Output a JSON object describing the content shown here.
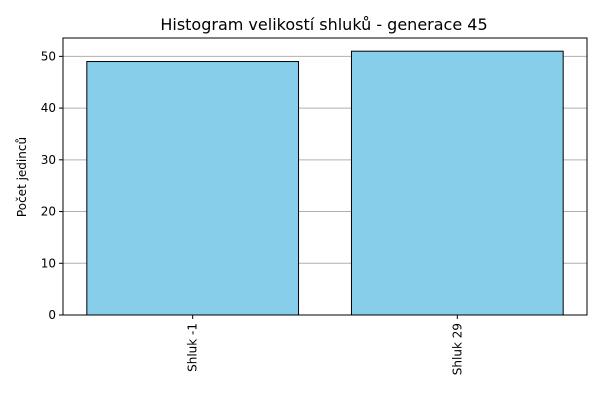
{
  "chart_data": {
    "type": "bar",
    "title": "Histogram velikostí shluků - generace 45",
    "xlabel": "",
    "ylabel": "Počet jedinců",
    "categories": [
      "Shluk -1",
      "Shluk 29"
    ],
    "values": [
      49,
      51
    ],
    "ylim": [
      0,
      53.55
    ],
    "yticks": [
      0,
      10,
      20,
      30,
      40,
      50
    ],
    "grid": "horizontal",
    "bar_color": "#87ceeb",
    "edge_color": "#000000",
    "grid_color": "#b0b0b0",
    "xtick_rotation": "vertical"
  }
}
